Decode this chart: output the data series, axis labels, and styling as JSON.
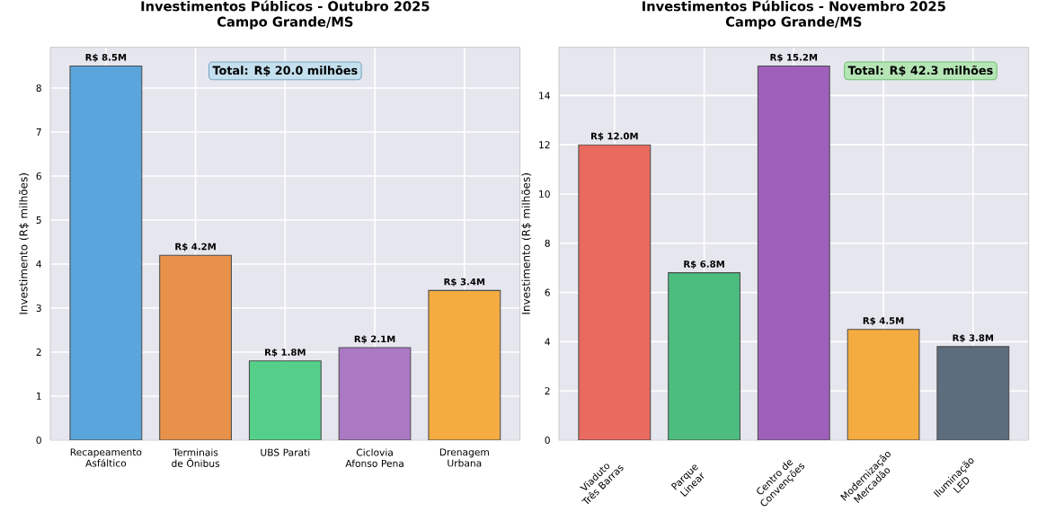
{
  "chart_data": [
    {
      "type": "bar",
      "title": "Investimentos Públicos - Outubro 2025",
      "subtitle": "Campo Grande/MS",
      "ylabel": "Investimento (R$ milhões)",
      "categories": [
        "Recapeamento Asfáltico",
        "Terminais de Ônibus",
        "UBS Parati",
        "Ciclovia Afonso Pena",
        "Drenagem Urbana"
      ],
      "values": [
        8.5,
        4.2,
        1.8,
        2.1,
        3.4
      ],
      "colors": [
        "#5aa5dc",
        "#e8914a",
        "#55d08a",
        "#ab78c4",
        "#f4ab40"
      ],
      "value_labels": [
        "R$ 8.5M",
        "R$ 4.2M",
        "R$ 1.8M",
        "R$ 2.1M",
        "R$ 3.4M"
      ],
      "annotations": [
        "Total: R$ 20.0 milhões"
      ],
      "ylim": [
        0,
        8.925
      ],
      "yticks": [
        0,
        1,
        2,
        3,
        4,
        5,
        6,
        7,
        8
      ],
      "grid": true
    },
    {
      "type": "bar",
      "title": "Investimentos Públicos - Novembro 2025",
      "subtitle": "Campo Grande/MS",
      "ylabel": "Investimento (R$ milhões)",
      "categories": [
        "Viaduto Três Barras",
        "Parque Linear",
        "Centro de Convenções",
        "Modernização Mercadão",
        "Iluminação LED"
      ],
      "values": [
        12.0,
        6.8,
        15.2,
        4.5,
        3.8
      ],
      "colors": [
        "#e96a5e",
        "#4dbd7f",
        "#9f60bb",
        "#f4ab40",
        "#5c6d7e"
      ],
      "value_labels": [
        "R$ 12.0M",
        "R$ 6.8M",
        "R$ 15.2M",
        "R$ 4.5M",
        "R$ 3.8M"
      ],
      "annotations": [
        "Total: R$ 42.3 milhões"
      ],
      "ylim": [
        0,
        15.96
      ],
      "yticks": [
        0,
        2,
        4,
        6,
        8,
        10,
        12,
        14
      ],
      "grid": true
    }
  ]
}
